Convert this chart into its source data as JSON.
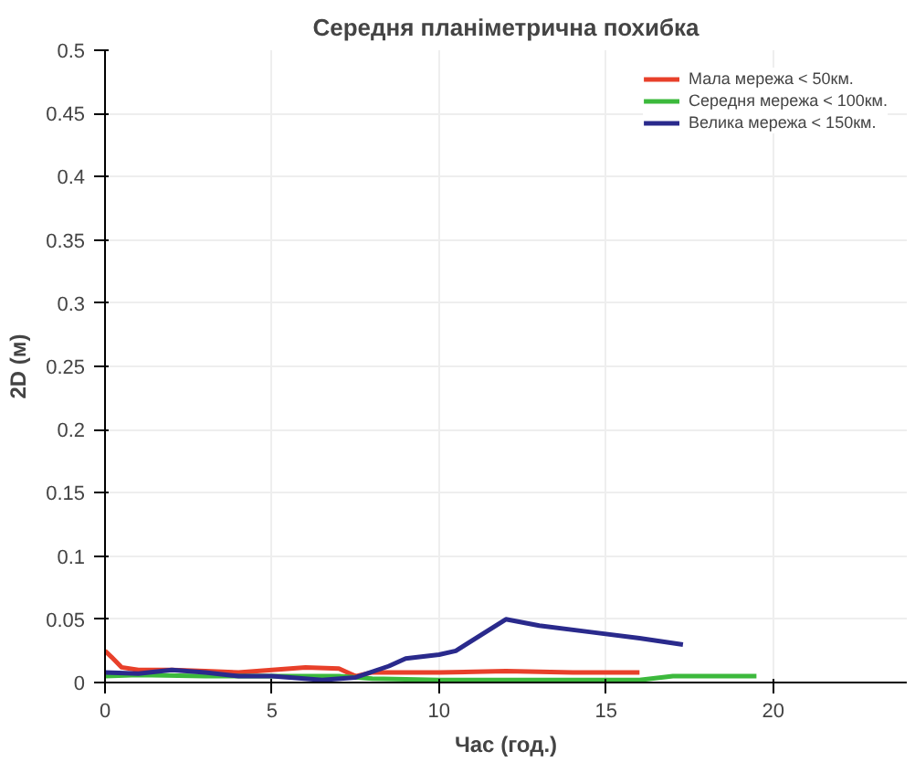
{
  "chart_data": {
    "type": "line",
    "title": "Середня планіметрична похибка",
    "xlabel": "Час (год.)",
    "ylabel": "2D (м)",
    "xlim": [
      0,
      24
    ],
    "ylim": [
      0,
      0.5
    ],
    "xticks": [
      0,
      5,
      10,
      15,
      20
    ],
    "yticks": [
      0,
      0.05,
      0.1,
      0.15,
      0.2,
      0.25,
      0.3,
      0.35,
      0.4,
      0.45,
      0.5
    ],
    "grid": true,
    "legend": "top right",
    "line_style": "solid",
    "marker": "none",
    "series": [
      {
        "name": "Мала мережа < 50км.",
        "color": "#e8402a",
        "x": [
          0,
          0.2,
          0.5,
          1,
          2,
          3,
          4,
          5,
          6,
          7,
          7.5,
          8,
          10,
          12,
          14,
          16
        ],
        "values": [
          0.025,
          0.02,
          0.012,
          0.01,
          0.01,
          0.009,
          0.008,
          0.01,
          0.012,
          0.011,
          0.005,
          0.008,
          0.008,
          0.009,
          0.008,
          0.008
        ]
      },
      {
        "name": "Середня мережа < 100км.",
        "color": "#3cb93c",
        "x": [
          0,
          1,
          3,
          5,
          7,
          8,
          10,
          12,
          14,
          16,
          17,
          19.5
        ],
        "values": [
          0.005,
          0.006,
          0.005,
          0.005,
          0.005,
          0.003,
          0.002,
          0.002,
          0.002,
          0.002,
          0.005,
          0.005
        ]
      },
      {
        "name": "Велика мережа < 150км.",
        "color": "#2a2a8c",
        "x": [
          0,
          1,
          2,
          3,
          4,
          5,
          6.5,
          7.5,
          8.5,
          9,
          10,
          10.5,
          12,
          13,
          14.5,
          16,
          17.3
        ],
        "values": [
          0.008,
          0.007,
          0.01,
          0.008,
          0.005,
          0.005,
          0.002,
          0.004,
          0.013,
          0.019,
          0.022,
          0.025,
          0.05,
          0.045,
          0.04,
          0.035,
          0.03
        ]
      }
    ]
  }
}
